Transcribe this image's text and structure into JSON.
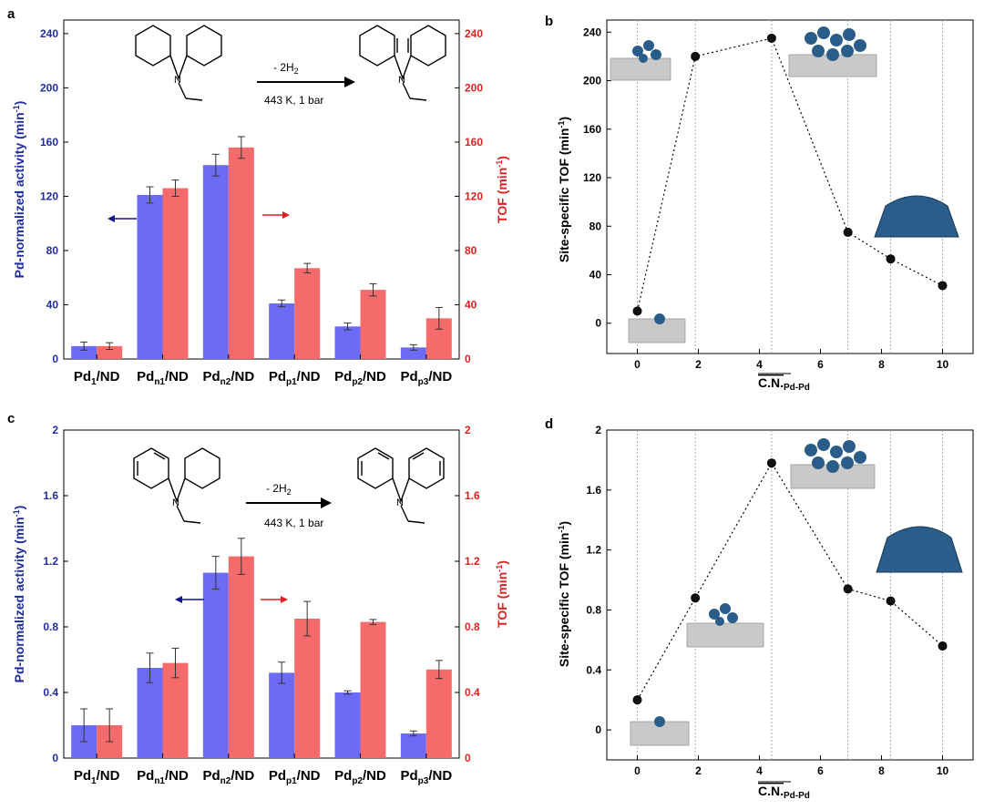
{
  "chart_data": [
    {
      "panel": "a",
      "type": "bar",
      "categories": [
        "Pd1/ND",
        "Pdn1/ND",
        "Pdn2/ND",
        "Pdp1/ND",
        "Pdp2/ND",
        "Pdp3/ND"
      ],
      "category_labels": [
        {
          "base": "Pd",
          "sub": "1",
          "rest": "/ND"
        },
        {
          "base": "Pd",
          "sub": "n1",
          "rest": "/ND"
        },
        {
          "base": "Pd",
          "sub": "n2",
          "rest": "/ND"
        },
        {
          "base": "Pd",
          "sub": "p1",
          "rest": "/ND"
        },
        {
          "base": "Pd",
          "sub": "p2",
          "rest": "/ND"
        },
        {
          "base": "Pd",
          "sub": "p3",
          "rest": "/ND"
        }
      ],
      "series": [
        {
          "name": "Pd-normalized activity",
          "axis": "left",
          "color": "#6b6bf5",
          "values": [
            9.5,
            121,
            143,
            41,
            24,
            8.5
          ],
          "errors": [
            3,
            6,
            8,
            2.5,
            2.5,
            2
          ]
        },
        {
          "name": "TOF",
          "axis": "right",
          "color": "#f56b6b",
          "values": [
            9.5,
            126,
            156,
            67,
            51,
            30
          ],
          "errors": [
            2.5,
            6,
            8,
            3.5,
            4.5,
            8
          ]
        }
      ],
      "ylabel_left": {
        "main": "Pd-normalized activity (min",
        "sup": "-1",
        "end": ")"
      },
      "ylabel_right": {
        "main": "TOF (min",
        "sup": "-1",
        "end": ")"
      },
      "ylim": [
        0,
        250
      ],
      "yticks": [
        "0",
        "40",
        "80",
        "120",
        "160",
        "200",
        "240"
      ],
      "ytick_values": [
        0,
        40,
        80,
        120,
        160,
        200,
        240
      ],
      "reaction": {
        "arrow_label": "- 2H",
        "arrow_sub": "2",
        "conditions": "443 K, 1 bar"
      }
    },
    {
      "panel": "b",
      "type": "scatter",
      "x": [
        0,
        1.9,
        4.4,
        6.9,
        8.3,
        10
      ],
      "y": [
        10,
        220,
        235,
        75,
        53,
        31
      ],
      "ylabel": {
        "main": "Site-specific TOF (min",
        "sup": "-1",
        "end": ")"
      },
      "xlabel": {
        "main": "C.N.",
        "sub": "Pd-Pd"
      },
      "xlim": [
        -1,
        11
      ],
      "ylim": [
        -25,
        250
      ],
      "xticks": [
        "0",
        "2",
        "4",
        "6",
        "8",
        "10"
      ],
      "xtick_values": [
        0,
        2,
        4,
        6,
        8,
        10
      ],
      "yticks": [
        "0",
        "40",
        "80",
        "120",
        "160",
        "200",
        "240"
      ],
      "ytick_values": [
        0,
        40,
        80,
        120,
        160,
        200,
        240
      ]
    },
    {
      "panel": "c",
      "type": "bar",
      "categories": [
        "Pd1/ND",
        "Pdn1/ND",
        "Pdn2/ND",
        "Pdp1/ND",
        "Pdp2/ND",
        "Pdp3/ND"
      ],
      "category_labels": [
        {
          "base": "Pd",
          "sub": "1",
          "rest": "/ND"
        },
        {
          "base": "Pd",
          "sub": "n1",
          "rest": "/ND"
        },
        {
          "base": "Pd",
          "sub": "n2",
          "rest": "/ND"
        },
        {
          "base": "Pd",
          "sub": "p1",
          "rest": "/ND"
        },
        {
          "base": "Pd",
          "sub": "p2",
          "rest": "/ND"
        },
        {
          "base": "Pd",
          "sub": "p3",
          "rest": "/ND"
        }
      ],
      "series": [
        {
          "name": "Pd-normalized activity",
          "axis": "left",
          "color": "#6b6bf5",
          "values": [
            0.2,
            0.55,
            1.13,
            0.52,
            0.4,
            0.15
          ],
          "errors": [
            0.1,
            0.09,
            0.1,
            0.065,
            0.01,
            0.015
          ]
        },
        {
          "name": "TOF",
          "axis": "right",
          "color": "#f56b6b",
          "values": [
            0.2,
            0.58,
            1.23,
            0.85,
            0.83,
            0.54
          ],
          "errors": [
            0.1,
            0.09,
            0.11,
            0.105,
            0.015,
            0.055
          ]
        }
      ],
      "ylabel_left": {
        "main": "Pd-normalized activity (min",
        "sup": "-1",
        "end": ")"
      },
      "ylabel_right": {
        "main": "TOF (min",
        "sup": "-1",
        "end": ")"
      },
      "ylim": [
        0,
        2
      ],
      "yticks": [
        "0",
        "0.4",
        "0.8",
        "1.2",
        "1.6",
        "2"
      ],
      "ytick_values": [
        0,
        0.4,
        0.8,
        1.2,
        1.6,
        2
      ],
      "reaction": {
        "arrow_label": "- 2H",
        "arrow_sub": "2",
        "conditions": "443 K, 1 bar"
      }
    },
    {
      "panel": "d",
      "type": "scatter",
      "x": [
        0,
        1.9,
        4.4,
        6.9,
        8.3,
        10
      ],
      "y": [
        0.2,
        0.88,
        1.78,
        0.94,
        0.86,
        0.56
      ],
      "ylabel": {
        "main": "Site-specific TOF (min",
        "sup": "-1",
        "end": ")"
      },
      "xlabel": {
        "main": "C.N.",
        "sub": "Pd-Pd"
      },
      "xlim": [
        -1,
        11
      ],
      "ylim": [
        -0.2,
        2
      ],
      "xticks": [
        "0",
        "2",
        "4",
        "6",
        "8",
        "10"
      ],
      "xtick_values": [
        0,
        2,
        4,
        6,
        8,
        10
      ],
      "yticks": [
        "0",
        "0.4",
        "0.8",
        "1.2",
        "1.6",
        "2"
      ],
      "ytick_values": [
        0,
        0.4,
        0.8,
        1.2,
        1.6,
        2
      ]
    }
  ],
  "colors": {
    "left_axis": "#1f2d9e",
    "right_axis": "#e02020",
    "arrow_left": "#14148c",
    "arrow_right": "#e02020",
    "cluster": "#2a5d8a",
    "support": "#b8b8b8"
  }
}
